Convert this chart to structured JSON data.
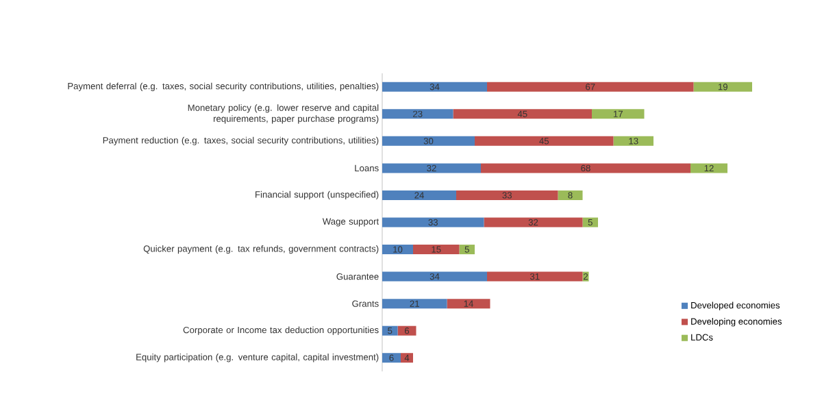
{
  "chart_data": {
    "type": "bar",
    "orientation": "horizontal",
    "stacked": true,
    "data_labels": true,
    "legend": "right",
    "categories": [
      "Payment deferral (e.g. taxes, social security contributions, utilities, penalties)",
      "Monetary policy (e.g.  lower reserve and capital requirements, paper purchase programs)",
      "Payment reduction (e.g. taxes, social security contributions, utilities)",
      "Loans",
      "Financial support (unspecified)",
      "Wage support",
      "Quicker payment (e.g. tax refunds, government contracts)",
      "Guarantee",
      "Grants",
      "Corporate or Income tax deduction opportunities",
      "Equity participation (e.g. venture capital, capital investment)"
    ],
    "series": [
      {
        "name": "Developed economies",
        "color": "#4f81bd",
        "values": [
          34,
          23,
          30,
          32,
          24,
          33,
          10,
          34,
          21,
          5,
          6
        ]
      },
      {
        "name": "Developing economies",
        "color": "#c0504d",
        "values": [
          67,
          45,
          45,
          68,
          33,
          32,
          15,
          31,
          14,
          6,
          4
        ]
      },
      {
        "name": "LDCs",
        "color": "#9bbb59",
        "values": [
          19,
          17,
          13,
          12,
          8,
          5,
          5,
          2,
          null,
          null,
          null
        ]
      }
    ]
  }
}
